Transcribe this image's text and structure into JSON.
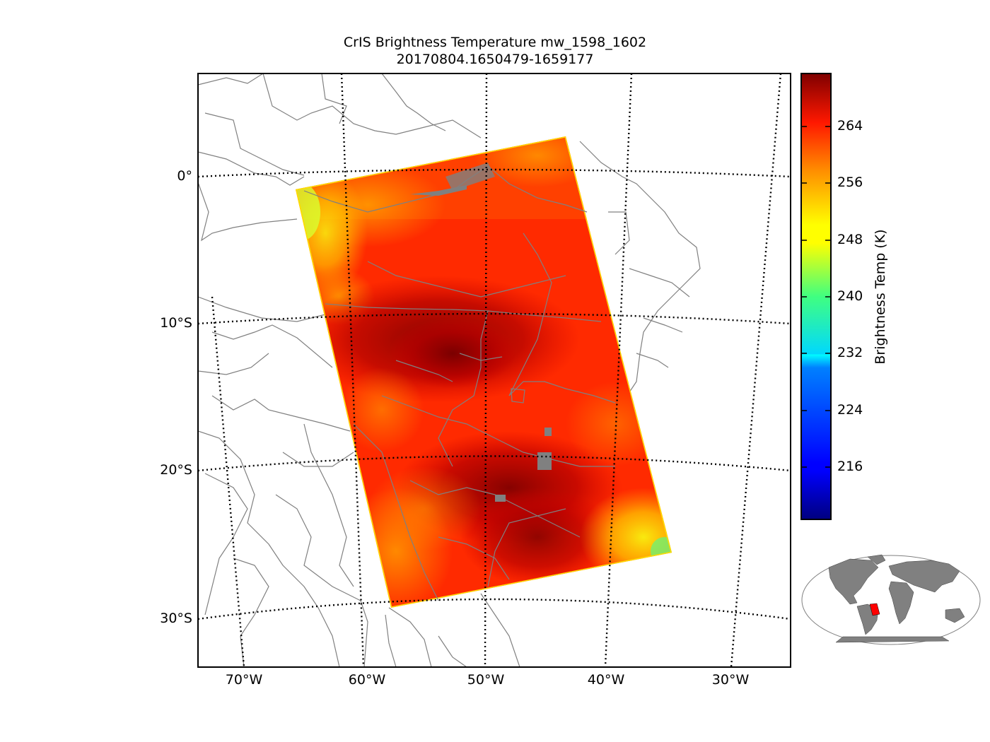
{
  "title": {
    "line1": "CrIS Brightness Temperature mw_1598_1602",
    "line2": "20170804.1650479-1659177"
  },
  "colorbar": {
    "label": "Brightness Temp (K)",
    "ticks": [
      "264",
      "256",
      "248",
      "240",
      "232",
      "224",
      "216"
    ],
    "colormap": "jet",
    "range": [
      208,
      272
    ]
  },
  "axes": {
    "lat_labels": [
      "0°",
      "10°S",
      "20°S",
      "30°S"
    ],
    "lon_labels": [
      "70°W",
      "60°W",
      "50°W",
      "40°W",
      "30°W"
    ]
  },
  "colors": {
    "coastline": "#808080",
    "country_border": "#808080",
    "swath_hot": "#8b0000",
    "swath_warm": "#ff2a00",
    "swath_edge": "#f0ff20",
    "inset_land": "#808080",
    "inset_highlight": "#ff0000"
  },
  "inset": {
    "description_icon": "world-locator-map-icon"
  }
}
